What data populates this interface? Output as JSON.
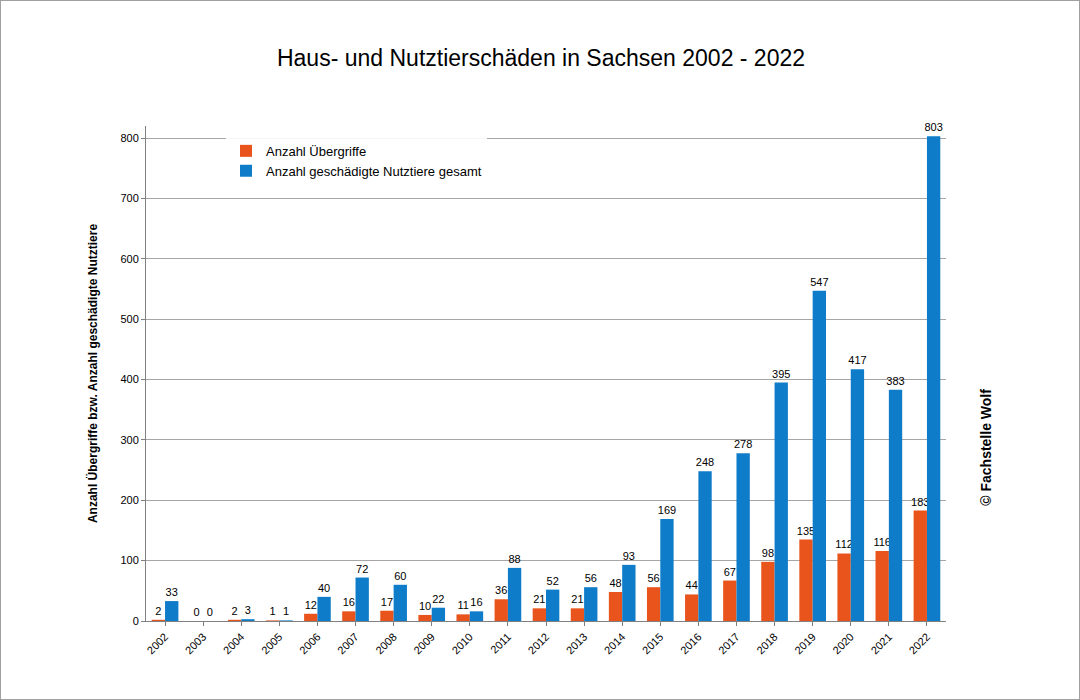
{
  "chart_data": {
    "type": "bar",
    "title": "Haus- und Nutztierschäden in Sachsen 2002 - 2022",
    "y_label": "Anzahl Übergriffe bzw. Anzahl geschädigte Nutztiere",
    "annotation": "© Fachstelle Wolf",
    "categories": [
      "2002",
      "2003",
      "2004",
      "2005",
      "2006",
      "2007",
      "2008",
      "2009",
      "2010",
      "2011",
      "2012",
      "2013",
      "2014",
      "2015",
      "2016",
      "2017",
      "2018",
      "2019",
      "2020",
      "2021",
      "2022"
    ],
    "series": [
      {
        "name": "Anzahl Übergriffe",
        "color": "#e8541c",
        "values": [
          2,
          0,
          2,
          1,
          12,
          16,
          17,
          10,
          11,
          36,
          21,
          21,
          48,
          56,
          44,
          67,
          98,
          135,
          112,
          116,
          183
        ]
      },
      {
        "name": "Anzahl geschädigte Nutztiere gesamt",
        "color": "#0e7cc8",
        "values": [
          33,
          0,
          3,
          1,
          40,
          72,
          60,
          22,
          16,
          88,
          52,
          56,
          93,
          169,
          248,
          278,
          395,
          547,
          417,
          383,
          803
        ]
      }
    ],
    "ylim": [
      0,
      820
    ],
    "yticks": [
      0,
      100,
      200,
      300,
      400,
      500,
      600,
      700,
      800
    ],
    "grid": true,
    "legend": "top left",
    "data_labels": true
  }
}
